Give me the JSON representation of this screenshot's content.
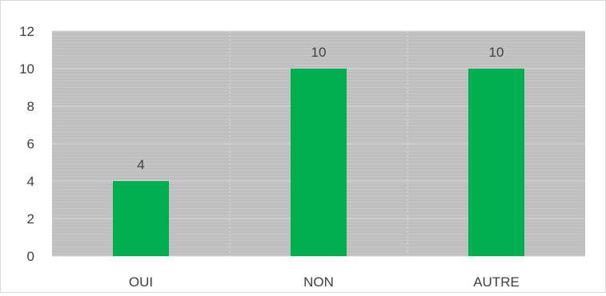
{
  "chart_data": {
    "type": "bar",
    "title": "",
    "xlabel": "",
    "ylabel": "",
    "categories": [
      "OUI",
      "NON",
      "AUTRE"
    ],
    "values": [
      4,
      10,
      10
    ],
    "data_labels": [
      "4",
      "10",
      "10"
    ],
    "ylim": [
      0,
      12
    ],
    "yticks": [
      "0",
      "2",
      "4",
      "6",
      "8",
      "10",
      "12"
    ],
    "grid": true,
    "legend": "none",
    "colors": {
      "bar": "#00b050",
      "plot_background": "#bfbfbf",
      "gridline": "#d9d9d9",
      "text": "#404040"
    }
  }
}
